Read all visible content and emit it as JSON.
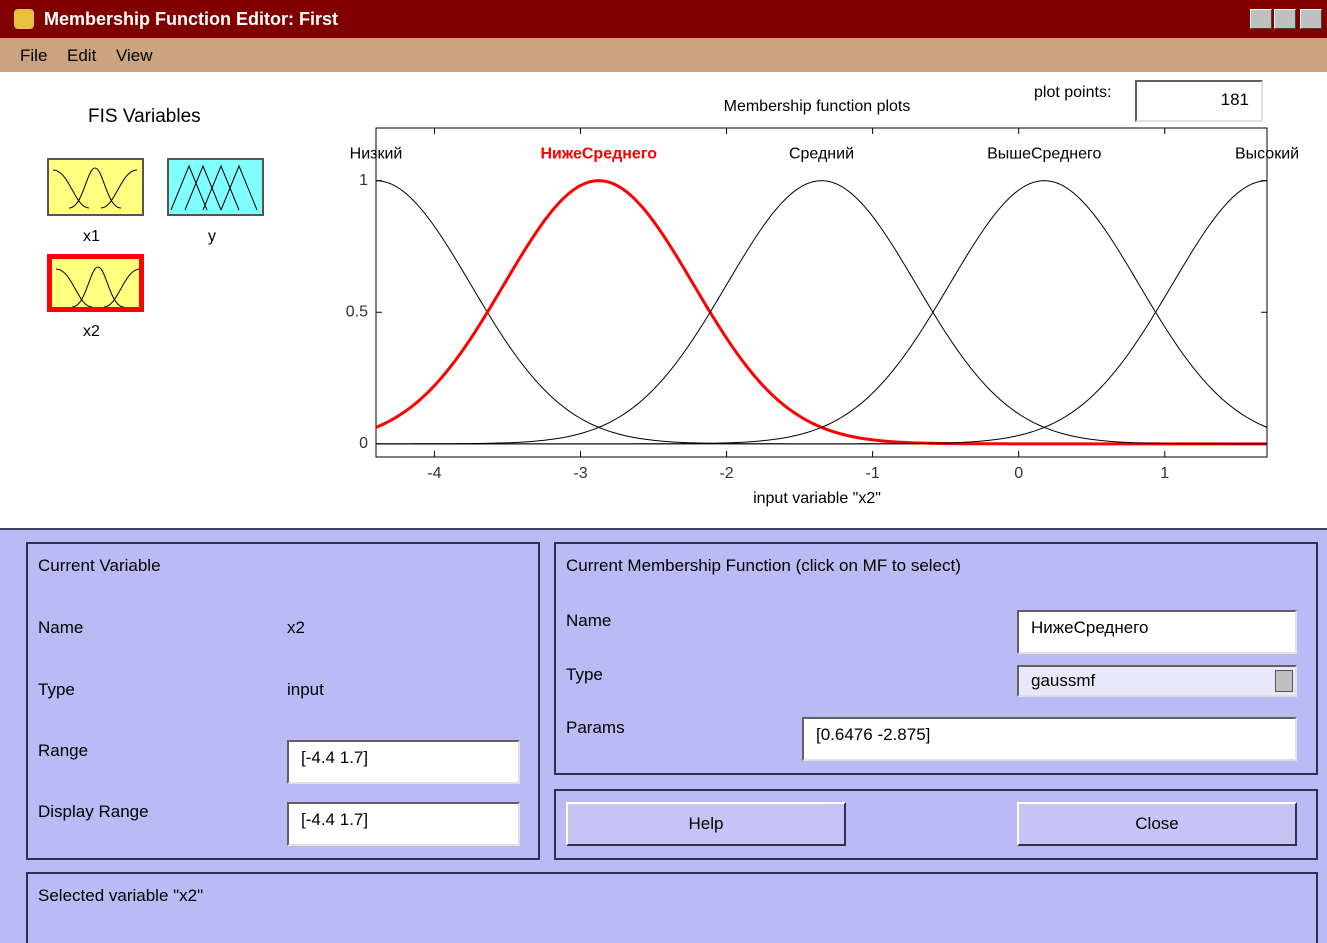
{
  "window": {
    "title": "Membership Function Editor: First",
    "menu": [
      "File",
      "Edit",
      "View"
    ]
  },
  "fis_variables": {
    "title": "FIS Variables",
    "items": [
      "x1",
      "y",
      "x2"
    ],
    "selected": "x2"
  },
  "plot_points": {
    "label": "plot points:",
    "value": 181
  },
  "chart_data": {
    "type": "line",
    "title": "Membership function plots",
    "xlabel": "input variable \"x2\"",
    "xlim": [
      -4.4,
      1.7
    ],
    "ylim": [
      -0.05,
      1.2
    ],
    "xticks": [
      -4,
      -3,
      -2,
      -1,
      0,
      1
    ],
    "yticks": [
      0,
      0.5,
      1
    ],
    "selected": 1,
    "selected_color": "#ff0000",
    "series": [
      {
        "name": "Низкий",
        "center": -4.4,
        "sigma": 0.6476,
        "color": "#000000"
      },
      {
        "name": "НижеСреднего",
        "center": -2.875,
        "sigma": 0.6476,
        "color": "#000000"
      },
      {
        "name": "Средний",
        "center": -1.35,
        "sigma": 0.6476,
        "color": "#000000"
      },
      {
        "name": "ВышеСреднего",
        "center": 0.175,
        "sigma": 0.6476,
        "color": "#000000"
      },
      {
        "name": "Высокий",
        "center": 1.7,
        "sigma": 0.6476,
        "color": "#000000"
      }
    ]
  },
  "current_variable": {
    "title": "Current Variable",
    "name_label": "Name",
    "name": "x2",
    "type_label": "Type",
    "type": "input",
    "range_label": "Range",
    "range": "[-4.4 1.7]",
    "display_range_label": "Display Range",
    "display_range": "[-4.4 1.7]"
  },
  "current_mf": {
    "title": "Current Membership Function (click on MF to select)",
    "name_label": "Name",
    "name": "НижеСреднего",
    "type_label": "Type",
    "type": "gaussmf",
    "params_label": "Params",
    "params": "[0.6476 -2.875]"
  },
  "buttons": [
    "Help",
    "Close"
  ],
  "status": "Selected variable \"x2\""
}
